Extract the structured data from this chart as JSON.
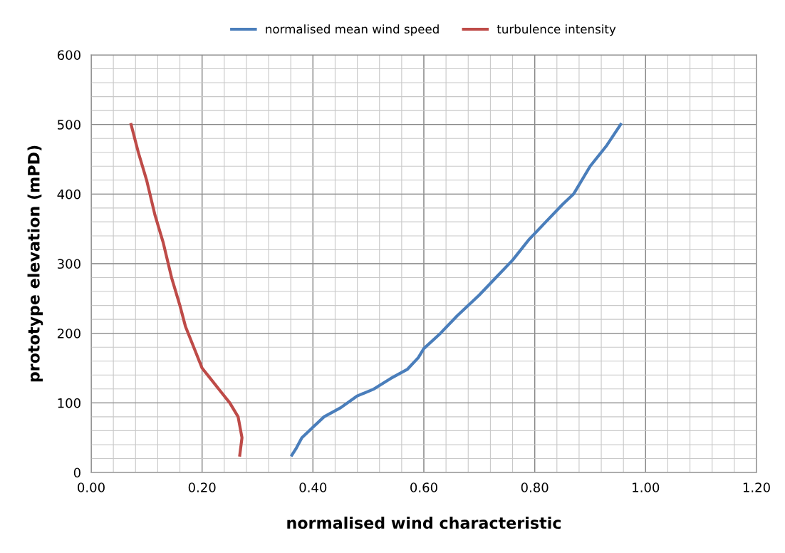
{
  "chart_data": {
    "type": "line",
    "xlabel": "normalised wind characteristic",
    "ylabel": "prototype elevation (mPD)",
    "xlim": [
      0,
      1.2
    ],
    "ylim": [
      0,
      600
    ],
    "xticks": [
      {
        "value": 0,
        "label": "0.00"
      },
      {
        "value": 0.2,
        "label": "0.20"
      },
      {
        "value": 0.4,
        "label": "0.40"
      },
      {
        "value": 0.6,
        "label": "0.60"
      },
      {
        "value": 0.8,
        "label": "0.80"
      },
      {
        "value": 1.0,
        "label": "1.00"
      },
      {
        "value": 1.2,
        "label": "1.20"
      }
    ],
    "yticks": [
      0,
      100,
      200,
      300,
      400,
      500,
      600
    ],
    "grid": true,
    "legend": "top",
    "marker": "none",
    "line_style": "solid",
    "series": [
      {
        "name": "normalised mean wind speed",
        "color": "#4a7ebb",
        "x": [
          0.362,
          0.37,
          0.38,
          0.4,
          0.42,
          0.45,
          0.48,
          0.51,
          0.54,
          0.57,
          0.59,
          0.6,
          0.63,
          0.66,
          0.7,
          0.73,
          0.76,
          0.79,
          0.82,
          0.85,
          0.87,
          0.9,
          0.93,
          0.955
        ],
        "values": [
          25,
          35,
          50,
          65,
          80,
          93,
          110,
          120,
          135,
          148,
          165,
          178,
          200,
          225,
          255,
          280,
          305,
          335,
          360,
          385,
          400,
          440,
          470,
          500
        ]
      },
      {
        "name": "turbulence intensity",
        "color": "#be4b48",
        "x": [
          0.072,
          0.085,
          0.1,
          0.115,
          0.13,
          0.145,
          0.16,
          0.17,
          0.185,
          0.2,
          0.215,
          0.235,
          0.25,
          0.265,
          0.272,
          0.268
        ],
        "values": [
          500,
          460,
          420,
          370,
          330,
          280,
          240,
          210,
          180,
          150,
          135,
          115,
          100,
          80,
          50,
          25
        ]
      }
    ]
  }
}
